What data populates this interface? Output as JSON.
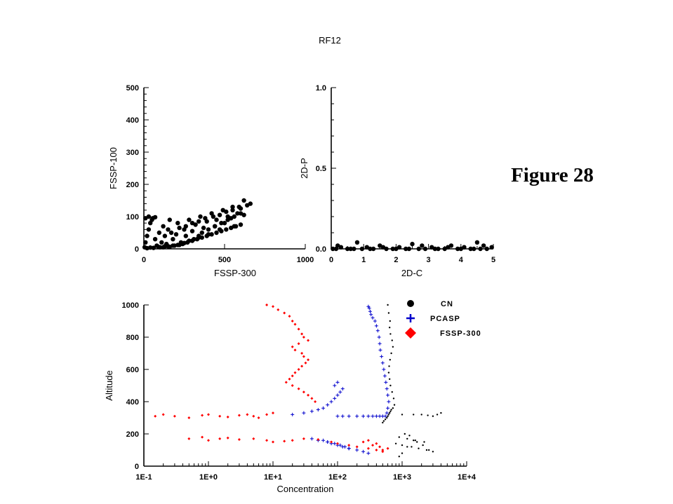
{
  "title": "RF12",
  "figure_label": "Figure 28",
  "chart_data": [
    {
      "type": "scatter",
      "xlabel": "FSSP-300",
      "ylabel": "FSSP-100",
      "xlim": [
        0,
        1000
      ],
      "ylim": [
        0,
        500
      ],
      "x_ticks": [
        0,
        500,
        1000
      ],
      "x_tick_labels": [
        "0",
        "500",
        "1000"
      ],
      "y_ticks": [
        0,
        100,
        200,
        300,
        400,
        500
      ],
      "y_tick_labels": [
        "0",
        "100",
        "200",
        "300",
        "400",
        "500"
      ],
      "series": [
        {
          "color": "#000000",
          "marker": "circle",
          "x": [
            5,
            10,
            20,
            30,
            40,
            55,
            70,
            80,
            95,
            110,
            120,
            140,
            150,
            160,
            180,
            200,
            210,
            230,
            250,
            260,
            280,
            300,
            320,
            340,
            350,
            370,
            390,
            400,
            420,
            440,
            450,
            470,
            490,
            500,
            520,
            540,
            550,
            560,
            580,
            600,
            620,
            640,
            660,
            20,
            40,
            60,
            90,
            120,
            150,
            180,
            210,
            240,
            270,
            300,
            330,
            360,
            390,
            420,
            450,
            480,
            510,
            540,
            570,
            600,
            130,
            170,
            220,
            260,
            300,
            340,
            380,
            430,
            470,
            510,
            550,
            590,
            10,
            30,
            50,
            70,
            100,
            130,
            160,
            190,
            220,
            250,
            280,
            310,
            340,
            360,
            400,
            440,
            480,
            520,
            560,
            600,
            620
          ],
          "y": [
            5,
            20,
            40,
            60,
            80,
            95,
            30,
            10,
            50,
            20,
            70,
            15,
            60,
            90,
            30,
            45,
            80,
            20,
            60,
            40,
            90,
            55,
            75,
            35,
            100,
            65,
            85,
            45,
            110,
            70,
            90,
            60,
            120,
            80,
            100,
            95,
            130,
            70,
            110,
            125,
            105,
            135,
            140,
            2,
            4,
            3,
            6,
            5,
            8,
            10,
            12,
            15,
            20,
            25,
            30,
            35,
            40,
            45,
            50,
            55,
            60,
            65,
            70,
            75,
            40,
            50,
            65,
            70,
            80,
            85,
            95,
            100,
            105,
            115,
            120,
            130,
            95,
            100,
            90,
            98,
            5,
            8,
            6,
            10,
            12,
            18,
            25,
            30,
            40,
            50,
            60,
            70,
            80,
            90,
            100,
            110,
            150
          ]
        }
      ]
    },
    {
      "type": "scatter",
      "xlabel": "2D-C",
      "ylabel": "2D-P",
      "xlim": [
        0,
        5
      ],
      "ylim": [
        0,
        1.0
      ],
      "x_ticks": [
        0,
        1,
        2,
        3,
        4,
        5
      ],
      "x_tick_labels": [
        "0",
        "1",
        "2",
        "3",
        "4",
        "5"
      ],
      "y_ticks": [
        0,
        0.5,
        1.0
      ],
      "y_tick_labels": [
        "0.0",
        "0.5",
        "1.0"
      ],
      "series": [
        {
          "color": "#000000",
          "marker": "circle",
          "x": [
            0.05,
            0.15,
            0.3,
            0.5,
            0.7,
            0.8,
            0.95,
            1.1,
            1.3,
            1.5,
            1.7,
            1.9,
            2.1,
            2.3,
            2.5,
            2.7,
            2.9,
            3.1,
            3.3,
            3.5,
            3.7,
            3.9,
            4.1,
            4.3,
            4.5,
            4.6,
            4.8,
            4.95,
            0.2,
            0.6,
            1.2,
            1.6,
            2.0,
            2.4,
            2.8,
            3.2,
            3.6,
            4.0,
            4.4,
            4.7
          ],
          "y": [
            0.0,
            0.0,
            0.01,
            0.0,
            0.0,
            0.04,
            0.0,
            0.01,
            0.0,
            0.02,
            0.0,
            0.0,
            0.01,
            0.0,
            0.03,
            0.0,
            0.0,
            0.01,
            0.0,
            0.0,
            0.02,
            0.0,
            0.01,
            0.0,
            0.04,
            0.0,
            0.0,
            0.01,
            0.02,
            0.0,
            0.0,
            0.01,
            0.0,
            0.0,
            0.02,
            0.0,
            0.01,
            0.0,
            0.0,
            0.02
          ]
        }
      ]
    },
    {
      "type": "scatter",
      "xlabel": "Concentration",
      "ylabel": "Altitude",
      "x_scale": "log",
      "xlim": [
        0.1,
        10000
      ],
      "ylim": [
        0,
        1000
      ],
      "x_ticks": [
        0.1,
        1,
        10,
        100,
        1000,
        10000
      ],
      "x_tick_labels": [
        "1E-1",
        "1E+0",
        "1E+1",
        "1E+2",
        "1E+3",
        "1E+4"
      ],
      "y_ticks": [
        0,
        200,
        400,
        600,
        800,
        1000
      ],
      "y_tick_labels": [
        "0",
        "200",
        "400",
        "600",
        "800",
        "1000"
      ],
      "legend_position": "top-right",
      "series": [
        {
          "name": "CN",
          "color": "#000000",
          "marker": "dot",
          "x": [
            600,
            620,
            650,
            640,
            660,
            700,
            720,
            680,
            650,
            630,
            620,
            640,
            660,
            700,
            740,
            760,
            720,
            680,
            660,
            640,
            620,
            600,
            580,
            550,
            520,
            500,
            1000,
            1500,
            2000,
            2500,
            3000,
            3500,
            4000,
            900,
            1200,
            1600,
            2200,
            800,
            1000,
            1400,
            1800,
            2400,
            3000,
            1100,
            1300,
            1700,
            2100,
            2600,
            900,
            1000,
            1200,
            1500
          ],
          "y": [
            1000,
            950,
            900,
            860,
            820,
            780,
            740,
            700,
            660,
            620,
            580,
            540,
            500,
            460,
            420,
            380,
            360,
            350,
            340,
            330,
            320,
            310,
            300,
            290,
            280,
            270,
            320,
            320,
            320,
            315,
            310,
            320,
            330,
            180,
            170,
            160,
            150,
            140,
            130,
            120,
            110,
            100,
            90,
            200,
            190,
            150,
            130,
            100,
            60,
            80,
            120,
            160
          ]
        },
        {
          "name": "PCASP",
          "color": "#0000cc",
          "marker": "plus",
          "x": [
            300,
            310,
            320,
            330,
            350,
            380,
            400,
            420,
            440,
            450,
            460,
            480,
            500,
            520,
            540,
            560,
            580,
            600,
            620,
            600,
            580,
            100,
            120,
            150,
            200,
            250,
            300,
            350,
            400,
            450,
            500,
            550,
            20,
            30,
            40,
            50,
            60,
            70,
            80,
            90,
            100,
            110,
            120,
            60,
            70,
            80,
            100,
            120,
            150,
            200,
            250,
            300,
            40,
            50,
            70,
            90,
            110,
            130,
            150,
            90,
            100
          ],
          "y": [
            990,
            980,
            960,
            940,
            920,
            900,
            870,
            840,
            800,
            760,
            720,
            680,
            640,
            600,
            560,
            520,
            480,
            440,
            400,
            360,
            330,
            310,
            310,
            310,
            310,
            310,
            310,
            310,
            310,
            310,
            310,
            310,
            320,
            330,
            340,
            350,
            360,
            380,
            400,
            420,
            440,
            460,
            480,
            160,
            150,
            140,
            130,
            120,
            110,
            100,
            90,
            80,
            170,
            160,
            150,
            140,
            130,
            120,
            110,
            500,
            520
          ]
        },
        {
          "name": "FSSP-300",
          "color": "#ff0000",
          "marker": "diamond",
          "x": [
            8,
            10,
            12,
            15,
            18,
            20,
            22,
            25,
            28,
            30,
            35,
            25,
            20,
            22,
            28,
            30,
            35,
            32,
            28,
            25,
            22,
            20,
            18,
            16,
            20,
            25,
            30,
            35,
            40,
            45,
            0.15,
            0.2,
            0.3,
            0.5,
            0.8,
            1,
            1.5,
            2,
            3,
            4,
            5,
            6,
            8,
            10,
            0.5,
            0.8,
            1,
            1.5,
            2,
            3,
            5,
            8,
            10,
            15,
            20,
            30,
            50,
            80,
            100,
            150,
            200,
            300,
            400,
            500,
            600,
            250,
            300,
            350,
            400,
            450,
            500
          ],
          "y": [
            1000,
            990,
            970,
            950,
            930,
            900,
            880,
            850,
            820,
            800,
            780,
            760,
            740,
            720,
            700,
            680,
            660,
            640,
            620,
            600,
            580,
            560,
            540,
            520,
            500,
            480,
            460,
            440,
            420,
            400,
            310,
            320,
            310,
            300,
            315,
            320,
            310,
            305,
            315,
            320,
            310,
            300,
            320,
            330,
            170,
            180,
            160,
            170,
            175,
            165,
            170,
            160,
            150,
            155,
            160,
            170,
            165,
            150,
            140,
            130,
            120,
            110,
            100,
            90,
            110,
            150,
            160,
            130,
            140,
            120,
            100
          ]
        }
      ]
    }
  ]
}
